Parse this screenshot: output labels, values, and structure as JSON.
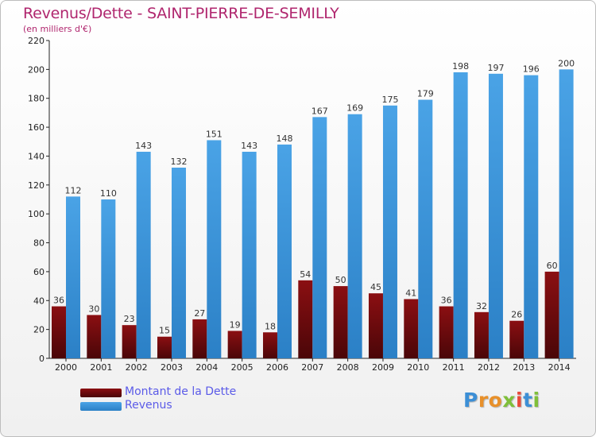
{
  "header": {
    "title": "Revenus/Dette - SAINT-PIERRE-DE-SEMILLY",
    "subtitle": "(en milliers d'€)"
  },
  "colors": {
    "title": "#b0266e",
    "legend_text": "#5b5be8",
    "debt": "#8b0f12",
    "debt_dark": "#4a0608",
    "revenue": "#4aa3e6",
    "revenue_dark": "#2b80c6"
  },
  "legend": {
    "items": [
      {
        "label": "Montant de la Dette",
        "color": "#7a0d10"
      },
      {
        "label": "Revenus",
        "color": "#3e9be0"
      }
    ]
  },
  "logo": {
    "text": "Proxiti"
  },
  "chart_data": {
    "type": "bar",
    "title": "Revenus/Dette - SAINT-PIERRE-DE-SEMILLY",
    "subtitle": "(en milliers d'€)",
    "categories": [
      "2000",
      "2001",
      "2002",
      "2003",
      "2004",
      "2005",
      "2006",
      "2007",
      "2008",
      "2009",
      "2010",
      "2011",
      "2012",
      "2013",
      "2014"
    ],
    "series": [
      {
        "name": "Montant de la Dette",
        "values": [
          36,
          30,
          23,
          15,
          27,
          19,
          18,
          54,
          50,
          45,
          41,
          36,
          32,
          26,
          60
        ]
      },
      {
        "name": "Revenus",
        "values": [
          112,
          110,
          143,
          132,
          151,
          143,
          148,
          167,
          169,
          175,
          179,
          198,
          197,
          196,
          200
        ]
      }
    ],
    "ylim": [
      0,
      220
    ],
    "yticks": [
      0,
      20,
      40,
      60,
      80,
      100,
      120,
      140,
      160,
      180,
      200,
      220
    ],
    "grid": false,
    "legend_position": "bottom-left"
  }
}
